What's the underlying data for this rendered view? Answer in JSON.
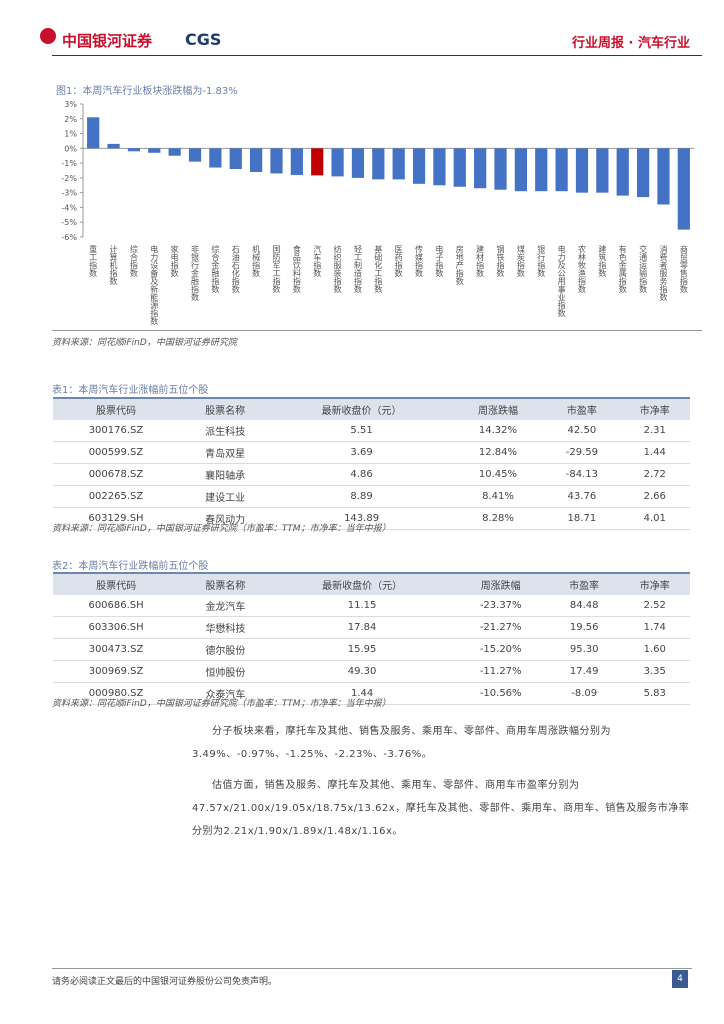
{
  "header": {
    "logo": "中国银河证券",
    "logo_en": "CGS",
    "right": "行业周报 · 汽车行业"
  },
  "chart_data": {
    "type": "bar",
    "title": "图1：本周汽车行业板块涨跌幅为-1.83%",
    "categories": [
      "重工指数",
      "计算机指数",
      "综合指数",
      "电力设备及新能源指数",
      "家电指数",
      "非银行金融指数",
      "综合金融指数",
      "石油石化指数",
      "机械指数",
      "国防军工指数",
      "食品饮料指数",
      "汽车指数",
      "纺织服装指数",
      "轻工制造指数",
      "基础化工指数",
      "医药指数",
      "传媒指数",
      "电子指数",
      "房地产指数",
      "建材指数",
      "钢铁指数",
      "煤炭指数",
      "银行指数",
      "电力及公用事业指数",
      "农林牧渔指数",
      "建筑指数",
      "有色金属指数",
      "交通运输指数",
      "消费者服务指数",
      "商贸零售指数"
    ],
    "values": [
      2.1,
      0.3,
      -0.2,
      -0.3,
      -0.5,
      -0.9,
      -1.3,
      -1.4,
      -1.6,
      -1.7,
      -1.8,
      -1.83,
      -1.9,
      -2.0,
      -2.1,
      -2.1,
      -2.4,
      -2.5,
      -2.6,
      -2.7,
      -2.8,
      -2.9,
      -2.9,
      -2.9,
      -3.0,
      -3.0,
      -3.2,
      -3.3,
      -3.8,
      -5.5
    ],
    "colors": [
      "#4472c4",
      "#4472c4",
      "#4472c4",
      "#4472c4",
      "#4472c4",
      "#4472c4",
      "#4472c4",
      "#4472c4",
      "#4472c4",
      "#4472c4",
      "#4472c4",
      "#c00000",
      "#4472c4",
      "#4472c4",
      "#4472c4",
      "#4472c4",
      "#4472c4",
      "#4472c4",
      "#4472c4",
      "#4472c4",
      "#4472c4",
      "#4472c4",
      "#4472c4",
      "#4472c4",
      "#4472c4",
      "#4472c4",
      "#4472c4",
      "#4472c4",
      "#4472c4",
      "#4472c4"
    ],
    "ylim": [
      -6,
      3
    ],
    "yticks": [
      {
        "value": 3,
        "label": "3%"
      },
      {
        "value": 2,
        "label": "2%"
      },
      {
        "value": 1,
        "label": "1%"
      },
      {
        "value": 0,
        "label": "0%"
      },
      {
        "value": -1,
        "label": "-1%"
      },
      {
        "value": -2,
        "label": "-2%"
      },
      {
        "value": -3,
        "label": "-3%"
      },
      {
        "value": -4,
        "label": "-4%"
      },
      {
        "value": -5,
        "label": "-5%"
      },
      {
        "value": -6,
        "label": "-6%"
      }
    ],
    "source": "资料来源：同花顺iFinD，中国银河证券研究院"
  },
  "table1": {
    "title": "表1：本周汽车行业涨幅前五位个股",
    "columns": [
      "股票代码",
      "股票名称",
      "最新收盘价（元）",
      "周涨跌幅",
      "市盈率",
      "市净率"
    ],
    "rows": [
      [
        "300176.SZ",
        "派生科技",
        "5.51",
        "14.32%",
        "42.50",
        "2.31"
      ],
      [
        "000599.SZ",
        "青岛双星",
        "3.69",
        "12.84%",
        "-29.59",
        "1.44"
      ],
      [
        "000678.SZ",
        "襄阳轴承",
        "4.86",
        "10.45%",
        "-84.13",
        "2.72"
      ],
      [
        "002265.SZ",
        "建设工业",
        "8.89",
        "8.41%",
        "43.76",
        "2.66"
      ],
      [
        "603129.SH",
        "春风动力",
        "143.89",
        "8.28%",
        "18.71",
        "4.01"
      ]
    ],
    "source": "资料来源：同花顺iFinD，中国银河证券研究院（市盈率：TTM；市净率：当年中报）"
  },
  "table2": {
    "title": "表2：本周汽车行业跌幅前五位个股",
    "columns": [
      "股票代码",
      "股票名称",
      "最新收盘价（元）",
      "周涨跌幅",
      "市盈率",
      "市净率"
    ],
    "rows": [
      [
        "600686.SH",
        "金龙汽车",
        "11.15",
        "-23.37%",
        "84.48",
        "2.52"
      ],
      [
        "603306.SH",
        "华懋科技",
        "17.84",
        "-21.27%",
        "19.56",
        "1.74"
      ],
      [
        "300473.SZ",
        "德尔股份",
        "15.95",
        "-15.20%",
        "95.30",
        "1.60"
      ],
      [
        "300969.SZ",
        "恒帅股份",
        "49.30",
        "-11.27%",
        "17.49",
        "3.35"
      ],
      [
        "000980.SZ",
        "众泰汽车",
        "1.44",
        "-10.56%",
        "-8.09",
        "5.83"
      ]
    ],
    "source": "资料来源：同花顺iFinD，中国银河证券研究院（市盈率：TTM；市净率：当年中报）"
  },
  "paragraphs": [
    "分子板块来看，摩托车及其他、销售及服务、乘用车、零部件、商用车周涨跌幅分别为3.49%、-0.97%、-1.25%、-2.23%、-3.76%。",
    "估值方面，销售及服务、摩托车及其他、乘用车、零部件、商用车市盈率分别为47.57x/21.00x/19.05x/18.75x/13.62x，摩托车及其他、零部件、乘用车、商用车、销售及服务市净率分别为2.21x/1.90x/1.89x/1.48x/1.16x。"
  ],
  "footer": {
    "disclaimer": "请务必阅读正文最后的中国银河证券股份公司免责声明。",
    "page": "4"
  }
}
